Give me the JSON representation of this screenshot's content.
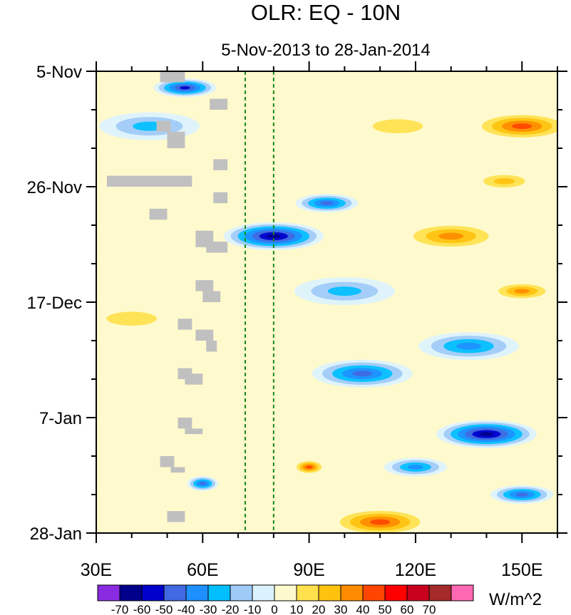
{
  "chart_data": {
    "type": "heatmap",
    "title": "OLR: EQ - 10N",
    "subtitle": "5-Nov-2013 to 28-Jan-2014",
    "x_axis": {
      "range": [
        30,
        160
      ],
      "ticks": [
        30,
        60,
        90,
        120,
        150
      ],
      "tick_labels": [
        "30E",
        "60E",
        "90E",
        "120E",
        "150E"
      ],
      "minor_step": 10,
      "unit": "degrees longitude east"
    },
    "y_axis": {
      "range_days": [
        0,
        84
      ],
      "ticks_days": [
        0,
        21,
        42,
        63,
        84
      ],
      "tick_labels": [
        "5-Nov",
        "26-Nov",
        "17-Dec",
        "7-Jan",
        "28-Jan"
      ],
      "minor_step_days": 7,
      "orientation": "time increases downward"
    },
    "reference_lines": [
      {
        "type": "vertical",
        "x": 72,
        "style": "dashed",
        "color": "#1a8a1a"
      },
      {
        "type": "vertical",
        "x": 80,
        "style": "dashed",
        "color": "#1a8a1a"
      }
    ],
    "colorbar": {
      "units": "W/m^2",
      "levels": [
        -70,
        -60,
        -50,
        -40,
        -30,
        -20,
        -10,
        0,
        10,
        20,
        30,
        40,
        50,
        60,
        70
      ],
      "level_labels": [
        "-70",
        "-60",
        "-50",
        "-40",
        "-30",
        "-20",
        "-10",
        "0",
        "10",
        "20",
        "30",
        "40",
        "50",
        "60",
        "70"
      ],
      "colors": [
        "#8a2be2",
        "#00008b",
        "#0000cd",
        "#4169e1",
        "#1e90ff",
        "#00bfff",
        "#9ecbf7",
        "#dcf2ff",
        "#fffacd",
        "#ffe14d",
        "#ffc20e",
        "#ff8c00",
        "#ff4500",
        "#ff0000",
        "#c8001e",
        "#a52a2a",
        "#ff69b4"
      ]
    },
    "missing_color": "#c0c0c0",
    "anomaly_features": [
      {
        "lon": 55,
        "day": 3,
        "value": -55,
        "size": "medium"
      },
      {
        "lon": 45,
        "day": 10,
        "value": -30,
        "size": "large"
      },
      {
        "lon": 80,
        "day": 30,
        "value": -70,
        "size": "large"
      },
      {
        "lon": 95,
        "day": 24,
        "value": -45,
        "size": "medium"
      },
      {
        "lon": 130,
        "day": 30,
        "value": 40,
        "size": "large"
      },
      {
        "lon": 150,
        "day": 10,
        "value": 45,
        "size": "large"
      },
      {
        "lon": 145,
        "day": 20,
        "value": 30,
        "size": "medium"
      },
      {
        "lon": 150,
        "day": 40,
        "value": 35,
        "size": "medium"
      },
      {
        "lon": 40,
        "day": 45,
        "value": 15,
        "size": "large"
      },
      {
        "lon": 105,
        "day": 55,
        "value": -45,
        "size": "large"
      },
      {
        "lon": 135,
        "day": 50,
        "value": -35,
        "size": "large"
      },
      {
        "lon": 140,
        "day": 66,
        "value": -65,
        "size": "large"
      },
      {
        "lon": 120,
        "day": 72,
        "value": -35,
        "size": "medium"
      },
      {
        "lon": 90,
        "day": 72,
        "value": 45,
        "size": "small"
      },
      {
        "lon": 110,
        "day": 82,
        "value": 50,
        "size": "large"
      },
      {
        "lon": 150,
        "day": 77,
        "value": -50,
        "size": "medium"
      },
      {
        "lon": 60,
        "day": 75,
        "value": -50,
        "size": "small"
      },
      {
        "lon": 40,
        "day": 70,
        "value": 10,
        "size": "large"
      },
      {
        "lon": 115,
        "day": 10,
        "value": 20,
        "size": "large"
      },
      {
        "lon": 100,
        "day": 40,
        "value": -30,
        "size": "large"
      }
    ],
    "missing_data_blocks": [
      {
        "lon": [
          48,
          55
        ],
        "day": [
          0,
          2
        ]
      },
      {
        "lon": [
          62,
          67
        ],
        "day": [
          5,
          7
        ]
      },
      {
        "lon": [
          47,
          51
        ],
        "day": [
          9,
          11
        ]
      },
      {
        "lon": [
          50,
          55
        ],
        "day": [
          11,
          14
        ]
      },
      {
        "lon": [
          63,
          67
        ],
        "day": [
          16,
          18
        ]
      },
      {
        "lon": [
          33,
          57
        ],
        "day": [
          19,
          21
        ]
      },
      {
        "lon": [
          63,
          67
        ],
        "day": [
          22,
          24
        ]
      },
      {
        "lon": [
          45,
          50
        ],
        "day": [
          25,
          27
        ]
      },
      {
        "lon": [
          58,
          63
        ],
        "day": [
          29,
          32
        ]
      },
      {
        "lon": [
          61,
          67
        ],
        "day": [
          31,
          33
        ]
      },
      {
        "lon": [
          58,
          63
        ],
        "day": [
          38,
          40
        ]
      },
      {
        "lon": [
          60,
          65
        ],
        "day": [
          40,
          42
        ]
      },
      {
        "lon": [
          53,
          57
        ],
        "day": [
          45,
          47
        ]
      },
      {
        "lon": [
          58,
          63
        ],
        "day": [
          47,
          49
        ]
      },
      {
        "lon": [
          61,
          64
        ],
        "day": [
          49,
          51
        ]
      },
      {
        "lon": [
          53,
          57
        ],
        "day": [
          54,
          56
        ]
      },
      {
        "lon": [
          55,
          60
        ],
        "day": [
          55,
          57
        ]
      },
      {
        "lon": [
          53,
          57
        ],
        "day": [
          63,
          65
        ]
      },
      {
        "lon": [
          55,
          60
        ],
        "day": [
          65,
          66
        ]
      },
      {
        "lon": [
          48,
          52
        ],
        "day": [
          70,
          72
        ]
      },
      {
        "lon": [
          51,
          55
        ],
        "day": [
          72,
          73
        ]
      },
      {
        "lon": [
          50,
          55
        ],
        "day": [
          80,
          82
        ]
      }
    ]
  }
}
